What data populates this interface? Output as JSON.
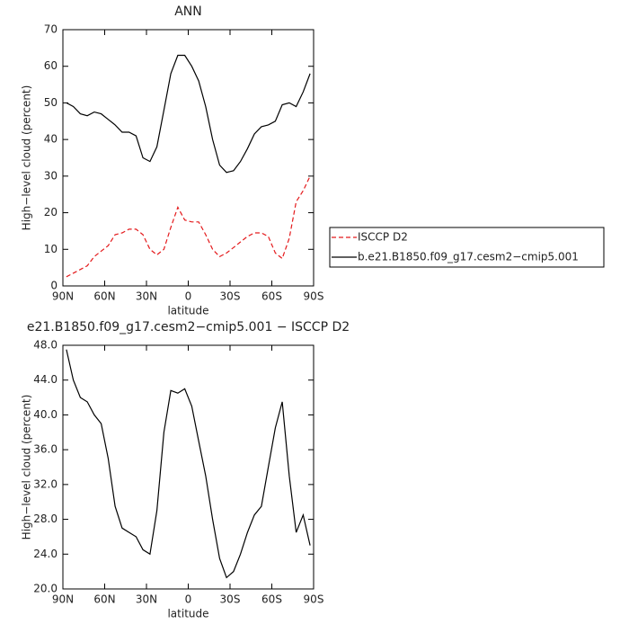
{
  "chart_data": [
    {
      "type": "line",
      "title": "ANN",
      "x_label": "latitude",
      "y_label": "High−level cloud (percent)",
      "x": [
        87.5,
        82.5,
        77.5,
        72.5,
        67.5,
        62.5,
        57.5,
        52.5,
        47.5,
        42.5,
        37.5,
        32.5,
        27.5,
        22.5,
        17.5,
        12.5,
        7.5,
        2.5,
        -2.5,
        -7.5,
        -12.5,
        -17.5,
        -22.5,
        -27.5,
        -32.5,
        -37.5,
        -42.5,
        -47.5,
        -52.5,
        -57.5,
        -62.5,
        -67.5,
        -72.5,
        -77.5,
        -82.5,
        -87.5
      ],
      "series": [
        {
          "name": "ISCCP D2",
          "color": "#e41a1c",
          "dash": true,
          "values": [
            2.5,
            3.5,
            4.5,
            5.5,
            8,
            9.5,
            11,
            14,
            14.5,
            15.5,
            15.5,
            14,
            10,
            8.5,
            10,
            16,
            21.5,
            18,
            17.5,
            17.5,
            14,
            10,
            8,
            9,
            10.5,
            12,
            13.5,
            14.5,
            14.5,
            13.5,
            9,
            7.5,
            13,
            23,
            26,
            30
          ]
        },
        {
          "name": "b.e21.B1850.f09_g17.cesm2−cmip5.001",
          "color": "#000000",
          "dash": false,
          "values": [
            50,
            49,
            47,
            46.5,
            47.5,
            47,
            45.5,
            44,
            42,
            42,
            41,
            35,
            34,
            38,
            48,
            58,
            63,
            63,
            60,
            56,
            49,
            40,
            33,
            31,
            31.5,
            34,
            37.5,
            41.5,
            43.5,
            44,
            45,
            49.5,
            50,
            49,
            53,
            58
          ]
        }
      ],
      "xlim": [
        90,
        -90
      ],
      "xticks": [
        {
          "value": 90,
          "label": "90N"
        },
        {
          "value": 60,
          "label": "60N"
        },
        {
          "value": 30,
          "label": "30N"
        },
        0,
        {
          "value": -30,
          "label": "30S"
        },
        {
          "value": -60,
          "label": "60S"
        },
        {
          "value": -90,
          "label": "90S"
        }
      ],
      "ylim": [
        0,
        70
      ],
      "yticks": [
        0,
        10,
        20,
        30,
        40,
        50,
        60,
        70
      ],
      "legend": "right"
    },
    {
      "type": "line",
      "title": "e21.B1850.f09_g17.cesm2−cmip5.001 − ISCCP D2",
      "x_label": "latitude",
      "y_label": "High−level cloud (percent)",
      "x": [
        87.5,
        82.5,
        77.5,
        72.5,
        67.5,
        62.5,
        57.5,
        52.5,
        47.5,
        42.5,
        37.5,
        32.5,
        27.5,
        22.5,
        17.5,
        12.5,
        7.5,
        2.5,
        -2.5,
        -7.5,
        -12.5,
        -17.5,
        -22.5,
        -27.5,
        -32.5,
        -37.5,
        -42.5,
        -47.5,
        -52.5,
        -57.5,
        -62.5,
        -67.5,
        -72.5,
        -77.5,
        -82.5,
        -87.5
      ],
      "series": [
        {
          "color": "#000000",
          "dash": false,
          "values": [
            47.5,
            44,
            42,
            41.5,
            40,
            39,
            35,
            29.5,
            27,
            26.5,
            26,
            24.5,
            24,
            29,
            38,
            42.8,
            42.5,
            43,
            41,
            37,
            33,
            28,
            23.5,
            21.3,
            22,
            24,
            26.5,
            28.5,
            29.5,
            34,
            38.5,
            41.5,
            33,
            26.5,
            28.5,
            25
          ]
        }
      ],
      "xlim": [
        90,
        -90
      ],
      "xticks": [
        {
          "value": 90,
          "label": "90N"
        },
        {
          "value": 60,
          "label": "60N"
        },
        {
          "value": 30,
          "label": "30N"
        },
        0,
        {
          "value": -30,
          "label": "30S"
        },
        {
          "value": -60,
          "label": "60S"
        },
        {
          "value": -90,
          "label": "90S"
        }
      ],
      "ylim": [
        20,
        48
      ],
      "yticks": [
        {
          "value": 20,
          "label": "20.0"
        },
        {
          "value": 24,
          "label": "24.0"
        },
        {
          "value": 28,
          "label": "28.0"
        },
        {
          "value": 32,
          "label": "32.0"
        },
        {
          "value": 36,
          "label": "36.0"
        },
        {
          "value": 40,
          "label": "40.0"
        },
        {
          "value": 44,
          "label": "44.0"
        },
        {
          "value": 48,
          "label": "48.0"
        }
      ]
    }
  ]
}
